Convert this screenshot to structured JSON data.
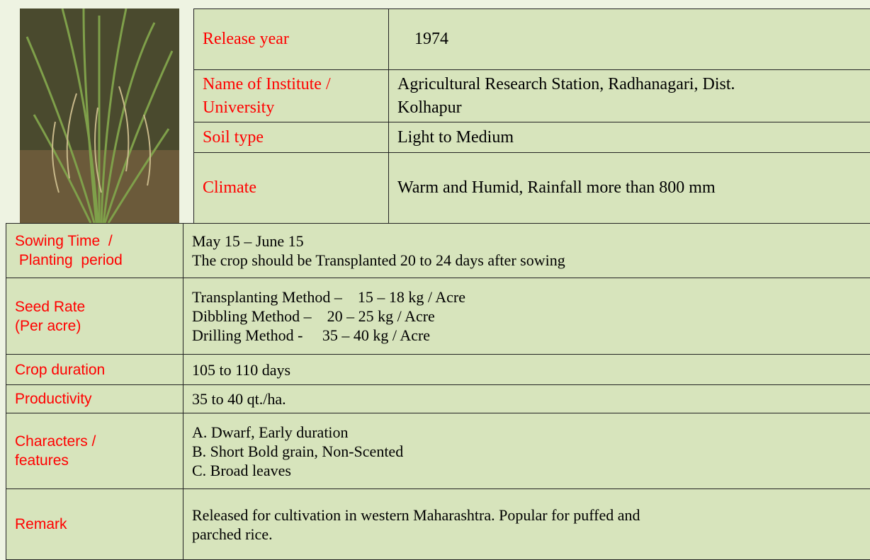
{
  "top_table": {
    "rows": [
      {
        "label": [
          "Release year"
        ],
        "value": [
          "1974"
        ]
      },
      {
        "label": [
          "Name of Institute /",
          "University"
        ],
        "value": [
          "Agricultural Research Station, Radhanagari, Dist.",
          "Kolhapur"
        ]
      },
      {
        "label": [
          "Soil type"
        ],
        "value": [
          "Light to Medium"
        ]
      },
      {
        "label": [
          "Climate"
        ],
        "value": [
          "Warm and Humid, Rainfall more than 800 mm"
        ]
      }
    ]
  },
  "bottom_table": {
    "rows": [
      {
        "label": [
          "Sowing Time  /",
          " Planting  period"
        ],
        "value": [
          "May 15 – June 15",
          "The crop should be Transplanted 20 to 24 days after sowing"
        ]
      },
      {
        "label": [
          "Seed Rate",
          "(Per acre)"
        ],
        "value": [
          "Transplanting Method –    15 – 18 kg / Acre",
          "Dibbling Method –    20 – 25 kg / Acre",
          "Drilling Method -     35 – 40 kg / Acre"
        ]
      },
      {
        "label": [
          "Crop duration"
        ],
        "value": [
          "105 to 110 days"
        ]
      },
      {
        "label": [
          "Productivity"
        ],
        "value": [
          "35 to 40 qt./ha."
        ]
      },
      {
        "label": [
          "Characters /",
          "features"
        ],
        "value": [
          "A. Dwarf, Early duration",
          "B. Short Bold grain, Non-Scented",
          "C. Broad leaves"
        ]
      },
      {
        "label": [
          "Remark"
        ],
        "value": [
          "Released for cultivation in western Maharashtra. Popular for puffed and",
          "parched rice."
        ]
      }
    ]
  }
}
